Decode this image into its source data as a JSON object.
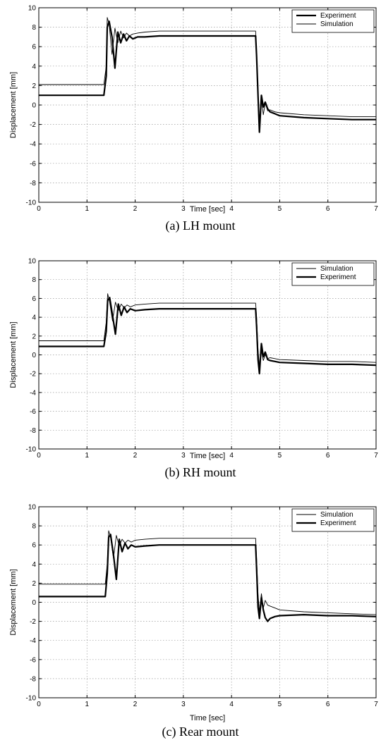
{
  "chart_data": [
    {
      "type": "line",
      "caption": "(a) LH mount",
      "xlabel": "Time [sec]",
      "ylabel": "Displacement [mm]",
      "xlim": [
        0,
        7
      ],
      "ylim": [
        -10,
        10
      ],
      "xticks": [
        "0",
        "1",
        "2",
        "3",
        "4",
        "5",
        "6",
        "7"
      ],
      "yticks": [
        "10",
        "8",
        "6",
        "4",
        "2",
        "0",
        "-2",
        "-4",
        "-6",
        "-8",
        "-10"
      ],
      "grid": true,
      "legend": "top-right",
      "series": [
        {
          "name": "Experiment",
          "style": "thick",
          "x": [
            0,
            0.5,
            1.0,
            1.35,
            1.4,
            1.42,
            1.46,
            1.52,
            1.58,
            1.64,
            1.7,
            1.76,
            1.82,
            1.88,
            1.95,
            2.05,
            2.2,
            2.5,
            3.0,
            3.5,
            4.0,
            4.5,
            4.52,
            4.55,
            4.58,
            4.62,
            4.66,
            4.7,
            4.75,
            4.8,
            4.9,
            5.0,
            5.5,
            6.0,
            6.5,
            7.0
          ],
          "y": [
            1.0,
            1.0,
            1.0,
            1.0,
            3.0,
            8.0,
            8.6,
            7.0,
            3.8,
            7.5,
            6.4,
            7.3,
            6.6,
            7.1,
            6.8,
            7.0,
            7.0,
            7.1,
            7.1,
            7.1,
            7.1,
            7.1,
            5.0,
            1.0,
            -2.8,
            1.0,
            -0.2,
            0.3,
            -0.4,
            -0.7,
            -0.9,
            -1.1,
            -1.3,
            -1.4,
            -1.5,
            -1.5
          ]
        },
        {
          "name": "Simulation",
          "style": "thin",
          "x": [
            0,
            0.5,
            1.0,
            1.35,
            1.4,
            1.42,
            1.46,
            1.52,
            1.58,
            1.64,
            1.7,
            1.76,
            1.82,
            1.88,
            1.95,
            2.05,
            2.2,
            2.5,
            3.0,
            3.5,
            4.0,
            4.5,
            4.52,
            4.55,
            4.58,
            4.62,
            4.66,
            4.7,
            4.75,
            4.8,
            4.9,
            5.0,
            5.5,
            6.0,
            6.5,
            7.0
          ],
          "y": [
            2.1,
            2.1,
            2.1,
            2.1,
            4.0,
            9.0,
            8.3,
            5.2,
            7.9,
            6.4,
            7.6,
            6.9,
            7.4,
            7.1,
            7.3,
            7.4,
            7.5,
            7.6,
            7.6,
            7.6,
            7.6,
            7.6,
            5.5,
            0.5,
            -1.5,
            0.6,
            -1.0,
            0.2,
            -0.6,
            -0.5,
            -0.7,
            -0.8,
            -1.0,
            -1.1,
            -1.2,
            -1.2
          ]
        }
      ]
    },
    {
      "type": "line",
      "caption": "(b) RH mount",
      "xlabel": "Time [sec]",
      "ylabel": "Displacement [mm]",
      "xlim": [
        0,
        7
      ],
      "ylim": [
        -10,
        10
      ],
      "xticks": [
        "0",
        "1",
        "2",
        "3",
        "4",
        "5",
        "6",
        "7"
      ],
      "yticks": [
        "10",
        "8",
        "6",
        "4",
        "2",
        "0",
        "-2",
        "-4",
        "-6",
        "-8",
        "-10"
      ],
      "grid": true,
      "legend": "top-right",
      "series": [
        {
          "name": "Simulation",
          "style": "thin",
          "x": [
            0,
            0.5,
            1.0,
            1.35,
            1.4,
            1.43,
            1.47,
            1.53,
            1.59,
            1.65,
            1.71,
            1.77,
            1.83,
            1.9,
            2.0,
            2.2,
            2.5,
            3.0,
            3.5,
            4.0,
            4.5,
            4.52,
            4.55,
            4.58,
            4.62,
            4.66,
            4.7,
            4.75,
            4.8,
            4.9,
            5.0,
            5.5,
            6.0,
            6.5,
            7.0
          ],
          "y": [
            1.5,
            1.5,
            1.5,
            1.5,
            3.5,
            6.5,
            5.6,
            3.6,
            5.6,
            4.7,
            5.4,
            5.0,
            5.3,
            5.1,
            5.3,
            5.4,
            5.5,
            5.5,
            5.5,
            5.5,
            5.5,
            4.0,
            0.5,
            -1.2,
            0.4,
            -0.6,
            0.0,
            -0.4,
            -0.3,
            -0.4,
            -0.5,
            -0.6,
            -0.7,
            -0.7,
            -0.8
          ]
        },
        {
          "name": "Experiment",
          "style": "thick",
          "x": [
            0,
            0.5,
            1.0,
            1.35,
            1.4,
            1.43,
            1.47,
            1.53,
            1.59,
            1.65,
            1.71,
            1.77,
            1.83,
            1.9,
            2.0,
            2.2,
            2.5,
            3.0,
            3.5,
            4.0,
            4.5,
            4.52,
            4.55,
            4.58,
            4.62,
            4.66,
            4.7,
            4.75,
            4.8,
            4.9,
            5.0,
            5.5,
            6.0,
            6.5,
            7.0
          ],
          "y": [
            0.9,
            0.9,
            0.9,
            0.9,
            2.5,
            5.8,
            6.1,
            4.2,
            2.2,
            5.4,
            4.2,
            5.1,
            4.5,
            4.9,
            4.7,
            4.8,
            4.9,
            4.9,
            4.9,
            4.9,
            4.9,
            3.0,
            -0.5,
            -2.0,
            1.2,
            -0.2,
            0.3,
            -0.5,
            -0.6,
            -0.7,
            -0.8,
            -0.9,
            -1.0,
            -1.0,
            -1.1
          ]
        }
      ]
    },
    {
      "type": "line",
      "caption": "(c) Rear mount",
      "xlabel": "Time [sec]",
      "ylabel": "Displacement [mm]",
      "xlim": [
        0,
        7
      ],
      "ylim": [
        -10,
        10
      ],
      "xticks": [
        "0",
        "1",
        "2",
        "3",
        "4",
        "5",
        "6",
        "7"
      ],
      "yticks": [
        "10",
        "8",
        "6",
        "4",
        "2",
        "0",
        "-2",
        "-4",
        "-6",
        "-8",
        "-10"
      ],
      "grid": true,
      "legend": "top-right",
      "series": [
        {
          "name": "Simulation",
          "style": "thin",
          "x": [
            0,
            0.5,
            1.0,
            1.38,
            1.42,
            1.45,
            1.49,
            1.55,
            1.61,
            1.67,
            1.73,
            1.79,
            1.85,
            1.92,
            2.0,
            2.2,
            2.5,
            3.0,
            3.5,
            4.0,
            4.5,
            4.52,
            4.55,
            4.58,
            4.62,
            4.66,
            4.7,
            4.75,
            4.8,
            4.9,
            5.0,
            5.5,
            6.0,
            6.5,
            7.0
          ],
          "y": [
            1.9,
            1.9,
            1.9,
            1.9,
            4.0,
            7.5,
            6.8,
            4.6,
            7.0,
            5.9,
            6.6,
            6.2,
            6.5,
            6.3,
            6.5,
            6.6,
            6.7,
            6.7,
            6.7,
            6.7,
            6.7,
            4.5,
            0.8,
            -1.0,
            0.9,
            -0.6,
            0.2,
            -0.3,
            -0.4,
            -0.6,
            -0.8,
            -1.0,
            -1.1,
            -1.2,
            -1.3
          ]
        },
        {
          "name": "Experiment",
          "style": "thick",
          "x": [
            0,
            0.5,
            1.0,
            1.38,
            1.42,
            1.45,
            1.49,
            1.55,
            1.61,
            1.67,
            1.73,
            1.79,
            1.85,
            1.92,
            2.0,
            2.2,
            2.5,
            3.0,
            3.5,
            4.0,
            4.5,
            4.52,
            4.55,
            4.58,
            4.62,
            4.66,
            4.7,
            4.75,
            4.8,
            4.9,
            5.0,
            5.5,
            6.0,
            6.5,
            7.0
          ],
          "y": [
            0.6,
            0.6,
            0.6,
            0.6,
            3.0,
            6.8,
            7.1,
            5.0,
            2.4,
            6.6,
            5.3,
            6.2,
            5.6,
            6.0,
            5.8,
            5.9,
            6.0,
            6.0,
            6.0,
            6.0,
            6.0,
            3.5,
            -0.5,
            -1.7,
            0.5,
            -0.8,
            -1.6,
            -2.0,
            -1.7,
            -1.5,
            -1.4,
            -1.3,
            -1.4,
            -1.4,
            -1.5
          ]
        }
      ]
    }
  ]
}
